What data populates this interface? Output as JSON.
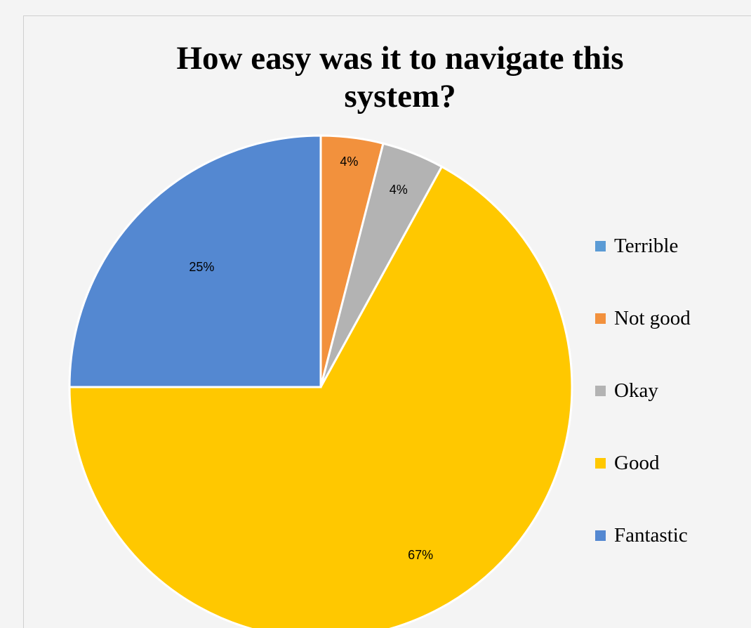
{
  "chart_data": {
    "type": "pie",
    "title": "How easy was it to navigate this system?",
    "categories": [
      "Terrible",
      "Not good",
      "Okay",
      "Good",
      "Fantastic"
    ],
    "values": [
      0,
      4,
      4,
      67,
      25
    ],
    "data_labels": [
      "",
      "4%",
      "4%",
      "67%",
      "25%"
    ],
    "colors": [
      "#5b9bd5",
      "#f2913d",
      "#b3b3b3",
      "#ffc800",
      "#5488d1"
    ],
    "legend_position": "right"
  }
}
